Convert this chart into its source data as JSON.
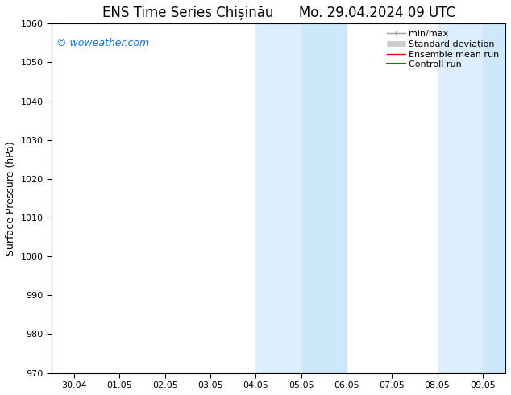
{
  "title_left": "ENS Time Series Chișinău",
  "title_right": "Mo. 29.04.2024 09 UTC",
  "ylabel": "Surface Pressure (hPa)",
  "ylim": [
    970,
    1060
  ],
  "yticks": [
    970,
    980,
    990,
    1000,
    1010,
    1020,
    1030,
    1040,
    1050,
    1060
  ],
  "xtick_labels": [
    "30.04",
    "01.05",
    "02.05",
    "03.05",
    "04.05",
    "05.05",
    "06.05",
    "07.05",
    "08.05",
    "09.05"
  ],
  "xtick_positions": [
    0,
    1,
    2,
    3,
    4,
    5,
    6,
    7,
    8,
    9
  ],
  "xlim": [
    -0.5,
    9.5
  ],
  "shaded_bands": [
    {
      "x_start": 4.0,
      "x_end": 5.0,
      "color": "#ddeeff"
    },
    {
      "x_start": 5.0,
      "x_end": 6.0,
      "color": "#cce8fa"
    },
    {
      "x_start": 8.0,
      "x_end": 9.0,
      "color": "#ddeeff"
    },
    {
      "x_start": 9.0,
      "x_end": 9.5,
      "color": "#cce8fa"
    }
  ],
  "watermark_text": "© woweather.com",
  "watermark_color": "#1a6dcc",
  "background_color": "#ffffff",
  "legend_items": [
    {
      "label": "min/max",
      "color": "#999999",
      "lw": 1,
      "type": "line_with_caps"
    },
    {
      "label": "Standard deviation",
      "color": "#cccccc",
      "lw": 5,
      "type": "bar"
    },
    {
      "label": "Ensemble mean run",
      "color": "#ff0000",
      "lw": 1,
      "type": "line"
    },
    {
      "label": "Controll run",
      "color": "#008000",
      "lw": 1.5,
      "type": "line"
    }
  ],
  "title_fontsize": 12,
  "tick_fontsize": 8,
  "label_fontsize": 9,
  "watermark_fontsize": 9,
  "legend_fontsize": 8
}
